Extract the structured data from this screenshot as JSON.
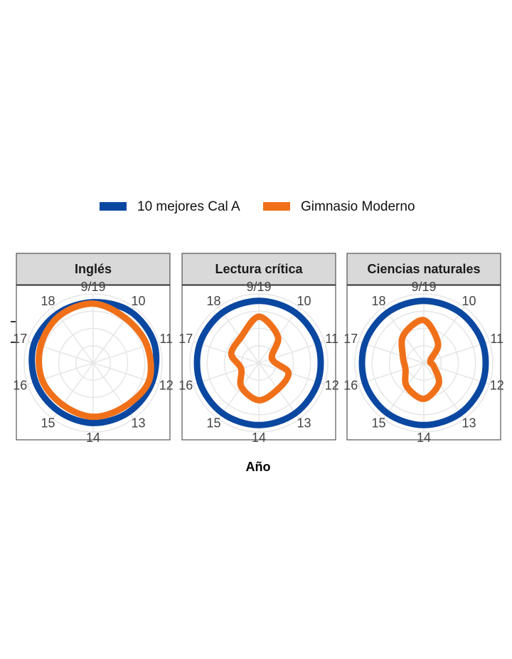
{
  "chart_data": [
    {
      "type": "polar",
      "title": "Inglés",
      "categories": [
        "9/19",
        "10",
        "11",
        "12",
        "13",
        "14",
        "15",
        "16",
        "17",
        "18"
      ],
      "ylim": [
        0,
        1
      ],
      "series": [
        {
          "name": "10 mejores Cal A",
          "color": "#0a47a0",
          "values": [
            0.88,
            0.92,
            0.93,
            0.9,
            0.88,
            0.87,
            0.86,
            0.88,
            0.9,
            0.88
          ]
        },
        {
          "name": "Gimnasio Moderno",
          "color": "#f07019",
          "values": [
            0.86,
            0.8,
            0.82,
            0.85,
            0.78,
            0.78,
            0.75,
            0.78,
            0.8,
            0.84
          ]
        }
      ]
    },
    {
      "type": "polar",
      "title": "Lectura crítica",
      "xlabel": "Año",
      "categories": [
        "9/19",
        "10",
        "11",
        "12",
        "13",
        "14",
        "15",
        "16",
        "17",
        "18"
      ],
      "ylim": [
        0,
        1
      ],
      "series": [
        {
          "name": "10 mejores Cal A",
          "color": "#0a47a0",
          "values": [
            0.9,
            0.9,
            0.9,
            0.9,
            0.9,
            0.9,
            0.9,
            0.9,
            0.9,
            0.9
          ]
        },
        {
          "name": "Gimnasio Moderno",
          "color": "#f07019",
          "values": [
            0.67,
            0.47,
            0.2,
            0.45,
            0.47,
            0.54,
            0.43,
            0.27,
            0.42,
            0.45
          ]
        }
      ]
    },
    {
      "type": "polar",
      "title": "Ciencias naturales",
      "categories": [
        "9/19",
        "10",
        "11",
        "12",
        "13",
        "14",
        "15",
        "16",
        "17",
        "18"
      ],
      "ylim": [
        0,
        1
      ],
      "series": [
        {
          "name": "10 mejores Cal A",
          "color": "#0a47a0",
          "values": [
            0.9,
            0.9,
            0.9,
            0.9,
            0.9,
            0.9,
            0.9,
            0.9,
            0.9,
            0.9
          ]
        },
        {
          "name": "Gimnasio Moderno",
          "color": "#f07019",
          "values": [
            0.62,
            0.35,
            0.1,
            0.15,
            0.37,
            0.52,
            0.42,
            0.28,
            0.32,
            0.5
          ]
        }
      ]
    }
  ]
}
